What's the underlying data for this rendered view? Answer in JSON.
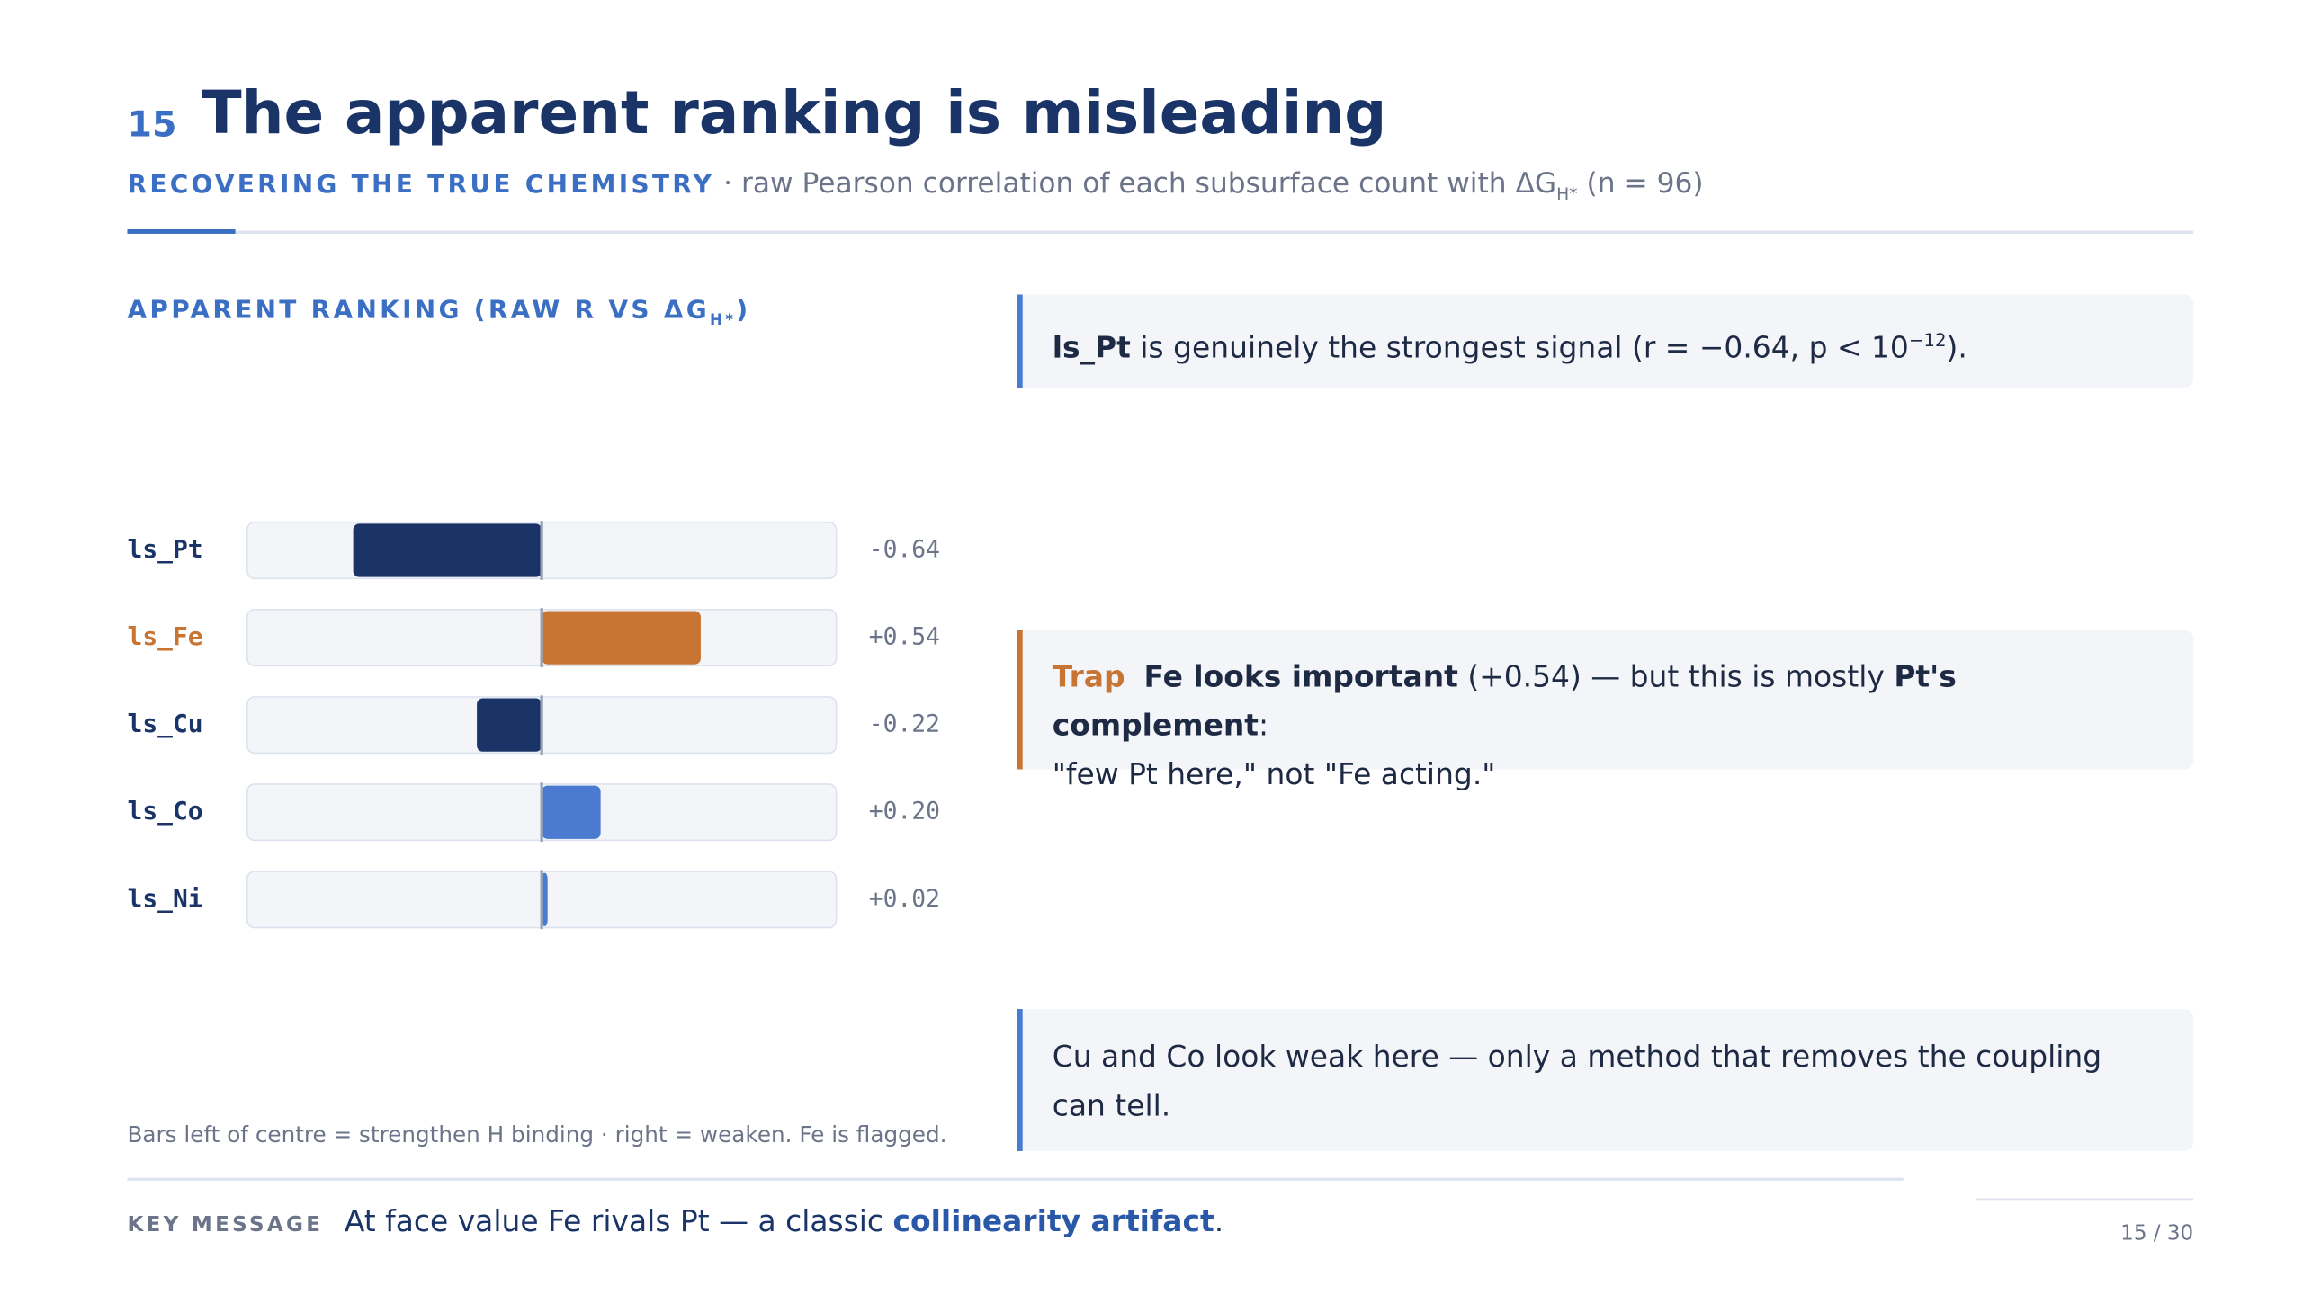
{
  "slide_number": "15",
  "title": "The apparent ranking is misleading",
  "subtitle": {
    "lead": "RECOVERING THE TRUE CHEMISTRY",
    "text": "· raw Pearson correlation of each subsurface count with ΔG",
    "sub": "H*",
    "tail": "(n = 96)"
  },
  "chart_data": {
    "type": "diverging-bar",
    "title": "APPARENT RANKING (RAW R VS ΔG",
    "title_sub": "H*",
    "title_tail": ")",
    "categories": [
      "ls_Pt",
      "ls_Fe",
      "ls_Cu",
      "ls_Co",
      "ls_Ni"
    ],
    "values": [
      -0.64,
      0.54,
      -0.22,
      0.2,
      0.02
    ],
    "value_labels": [
      "-0.64",
      "+0.54",
      "-0.22",
      "+0.20",
      "+0.02"
    ],
    "colors": [
      "#1a3468",
      "#c87533",
      "#1a3468",
      "#4a7bd0",
      "#4a7bd0"
    ],
    "label_colors": [
      "#1a3468",
      "#c87533",
      "#1a3468",
      "#1a3468",
      "#1a3468"
    ],
    "xlim": [
      -1,
      1
    ],
    "note": "Bars left of centre = strengthen H binding · right = weaken. Fe is flagged."
  },
  "callouts": [
    {
      "bold": "ls_Pt",
      "text": "is genuinely the strongest signal (r = −0.64, p < 10",
      "sup": "−12",
      "tail": ")."
    },
    {
      "tag": "Trap",
      "bold": "Fe looks important",
      "text": "(+0.54) — but this is mostly",
      "bold2": "Pt's complement",
      "tail": ":",
      "line2": "\"few Pt here,\" not \"Fe acting.\""
    },
    {
      "text": "Cu and Co look weak here — only a method that removes the coupling can tell."
    }
  ],
  "key_message": {
    "label": "KEY MESSAGE",
    "text": "At face value Fe rivals Pt — a classic",
    "bold": "collinearity artifact",
    "tail": "."
  },
  "page": "15 / 30"
}
